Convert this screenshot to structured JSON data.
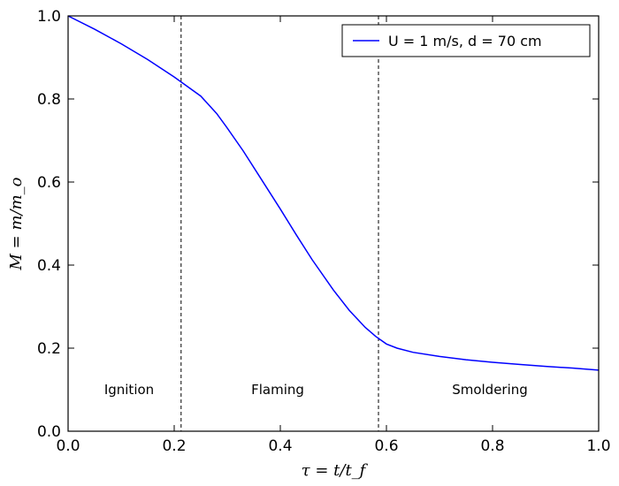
{
  "chart_data": {
    "type": "line",
    "xlabel": "τ = t/t_f",
    "ylabel": "M = m/m_o",
    "xlim": [
      0.0,
      1.0
    ],
    "ylim": [
      0.0,
      1.0
    ],
    "x_ticks": [
      "0.0",
      "0.2",
      "0.4",
      "0.6",
      "0.8",
      "1.0"
    ],
    "y_ticks": [
      "0.0",
      "0.2",
      "0.4",
      "0.6",
      "0.8",
      "1.0"
    ],
    "grid": false,
    "legend_position": "top-right",
    "series": [
      {
        "name": "U = 1 m/s, d = 70 cm",
        "color": "#0000ff",
        "x": [
          0.0,
          0.05,
          0.1,
          0.15,
          0.2,
          0.25,
          0.28,
          0.3,
          0.33,
          0.36,
          0.4,
          0.43,
          0.46,
          0.5,
          0.53,
          0.56,
          0.58,
          0.6,
          0.62,
          0.65,
          0.7,
          0.75,
          0.8,
          0.85,
          0.9,
          0.95,
          1.0
        ],
        "y": [
          1.0,
          0.968,
          0.933,
          0.895,
          0.853,
          0.807,
          0.765,
          0.73,
          0.675,
          0.615,
          0.535,
          0.473,
          0.413,
          0.34,
          0.291,
          0.25,
          0.228,
          0.21,
          0.2,
          0.19,
          0.18,
          0.172,
          0.166,
          0.161,
          0.156,
          0.152,
          0.147
        ]
      }
    ],
    "vlines": [
      {
        "x": 0.213,
        "style": "dashed"
      },
      {
        "x": 0.585,
        "style": "dashed"
      }
    ],
    "annotations": [
      {
        "text": "Ignition",
        "x": 0.115,
        "y": 0.1
      },
      {
        "text": "Flaming",
        "x": 0.395,
        "y": 0.1
      },
      {
        "text": "Smoldering",
        "x": 0.795,
        "y": 0.1
      }
    ]
  }
}
